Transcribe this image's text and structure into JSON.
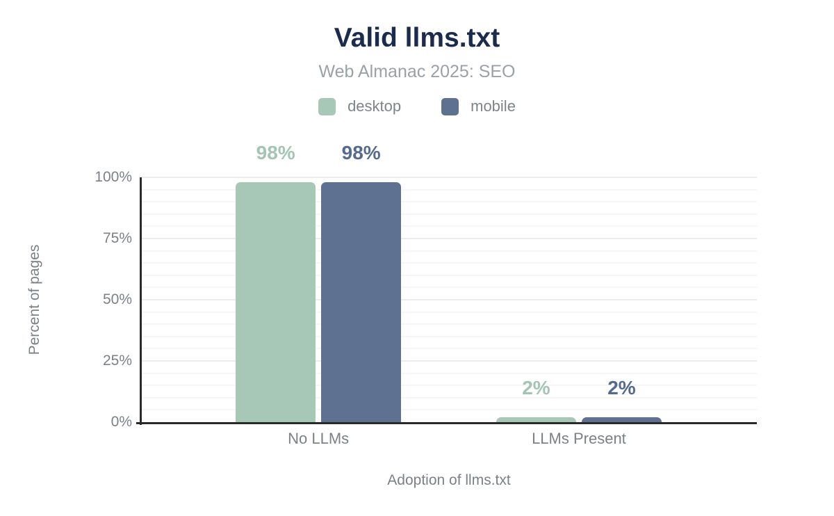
{
  "header": {
    "title": "Valid llms.txt",
    "subtitle": "Web Almanac 2025: SEO"
  },
  "chart_data": {
    "type": "bar",
    "title": "Valid llms.txt",
    "subtitle": "Web Almanac 2025: SEO",
    "categories": [
      "No LLMs",
      "LLMs Present"
    ],
    "series": [
      {
        "name": "desktop",
        "values": [
          98,
          2
        ],
        "color": "#a8c8b7",
        "label_color": "#a3c5b3"
      },
      {
        "name": "mobile",
        "values": [
          98,
          2
        ],
        "color": "#5e7190",
        "label_color": "#546a8e"
      }
    ],
    "value_labels": [
      [
        "98%",
        "98%"
      ],
      [
        "2%",
        "2%"
      ]
    ],
    "xlabel": "Adoption of llms.txt",
    "ylabel": "Percent of pages",
    "yticks": [
      "0%",
      "25%",
      "50%",
      "75%",
      "100%"
    ],
    "ylim": [
      0,
      100
    ],
    "grid": "horizontal minor gridlines every 5%",
    "legend_position": "top center",
    "axis_color": "#2a2a2a",
    "gridline_minor_color": "#f6f6f6",
    "gridline_major_color": "#ececec"
  }
}
